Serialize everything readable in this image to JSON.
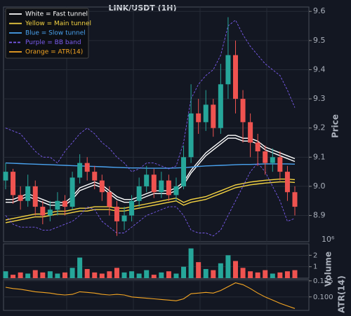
{
  "chart_data": [
    {
      "type": "candlestick",
      "title": "LINK/USDT (1H)",
      "ylabel": "Price",
      "ylim": [
        8.81,
        9.615
      ],
      "yticks": [
        8.9,
        {
          "value": 9,
          "label": "9.0"
        },
        9.1,
        9.2,
        9.3,
        9.4,
        9.5,
        9.6
      ],
      "grid": true,
      "legend": "upper left",
      "up_color": "#26a69a",
      "down_color": "#ef5350",
      "open": [
        9.02,
        9.05,
        8.97,
        8.95,
        9.0,
        8.93,
        8.9,
        8.92,
        8.95,
        8.93,
        9.03,
        9.08,
        9.05,
        9.02,
        8.98,
        8.93,
        8.88,
        8.9,
        8.95,
        9.0,
        9.04,
        8.98,
        9.02,
        8.97,
        9.0,
        9.1,
        9.25,
        9.22,
        9.28,
        9.2,
        9.35,
        9.45,
        9.3,
        9.22,
        9.15,
        9.12,
        9.08,
        9.1,
        9.05,
        8.98
      ],
      "high": [
        9.08,
        9.06,
        9.0,
        9.04,
        9.02,
        8.95,
        8.95,
        8.98,
        8.97,
        9.05,
        9.11,
        9.1,
        9.07,
        9.04,
        9.0,
        8.95,
        8.93,
        8.97,
        9.03,
        9.07,
        9.06,
        9.05,
        9.04,
        9.03,
        9.14,
        9.35,
        9.3,
        9.33,
        9.3,
        9.42,
        9.58,
        9.5,
        9.33,
        9.25,
        9.18,
        9.14,
        9.13,
        9.12,
        9.07,
        9.0
      ],
      "low": [
        8.99,
        8.94,
        8.92,
        8.93,
        8.9,
        8.87,
        8.88,
        8.9,
        8.9,
        8.92,
        9.01,
        9.02,
        8.99,
        8.95,
        8.9,
        8.83,
        8.85,
        8.88,
        8.93,
        8.98,
        8.96,
        8.96,
        8.95,
        8.95,
        8.99,
        9.08,
        9.18,
        9.19,
        9.17,
        9.18,
        9.3,
        9.25,
        9.15,
        9.1,
        9.07,
        9.04,
        9.05,
        9.02,
        8.95,
        8.9
      ],
      "close": [
        9.05,
        8.97,
        8.95,
        9.0,
        8.93,
        8.9,
        8.92,
        8.95,
        8.93,
        9.03,
        9.08,
        9.05,
        9.02,
        8.98,
        8.93,
        8.88,
        8.9,
        8.95,
        9.0,
        9.04,
        8.98,
        9.02,
        8.97,
        9.0,
        9.1,
        9.25,
        9.22,
        9.28,
        9.2,
        9.35,
        9.45,
        9.3,
        9.22,
        9.15,
        9.12,
        9.08,
        9.1,
        9.05,
        8.98,
        8.93
      ],
      "series": [
        {
          "name": "White = Fast tunnel",
          "color": "#ffffff",
          "double": true,
          "values": [
            8.95,
            8.95,
            8.96,
            8.97,
            8.96,
            8.95,
            8.94,
            8.94,
            8.94,
            8.96,
            8.99,
            9.0,
            9.01,
            9.0,
            8.98,
            8.96,
            8.95,
            8.95,
            8.96,
            8.97,
            8.98,
            8.98,
            8.98,
            8.99,
            9.01,
            9.05,
            9.08,
            9.11,
            9.13,
            9.15,
            9.17,
            9.17,
            9.16,
            9.16,
            9.15,
            9.13,
            9.12,
            9.11,
            9.1,
            9.09
          ]
        },
        {
          "name": "Yellow = Main tunnel",
          "color": "#f5d442",
          "double": true,
          "values": [
            8.88,
            8.885,
            8.89,
            8.895,
            8.9,
            8.9,
            8.905,
            8.91,
            8.91,
            8.915,
            8.92,
            8.92,
            8.925,
            8.925,
            8.925,
            8.92,
            8.92,
            8.925,
            8.93,
            8.935,
            8.94,
            8.945,
            8.95,
            8.955,
            8.94,
            8.95,
            8.955,
            8.96,
            8.97,
            8.98,
            8.99,
            9.0,
            9.005,
            9.01,
            9.013,
            9.016,
            9.018,
            9.02,
            9.02,
            9.018
          ]
        },
        {
          "name": "Blue = Slow tunnel",
          "color": "#4aa3f0",
          "values": [
            9.08,
            9.079,
            9.078,
            9.077,
            9.076,
            9.075,
            9.074,
            9.073,
            9.072,
            9.071,
            9.07,
            9.069,
            9.068,
            9.067,
            9.066,
            9.065,
            9.064,
            9.063,
            9.063,
            9.062,
            9.062,
            9.062,
            9.062,
            9.063,
            9.064,
            9.066,
            9.068,
            9.07,
            9.071,
            9.072,
            9.073,
            9.074,
            9.075,
            9.075,
            9.076,
            9.077,
            9.077,
            9.077,
            9.077,
            9.076
          ]
        },
        {
          "name": "Purple = BB band",
          "color": "#7b5cf0",
          "dashed": true,
          "values": [
            9.2,
            9.19,
            9.18,
            9.15,
            9.12,
            9.1,
            9.1,
            9.08,
            9.12,
            9.15,
            9.18,
            9.2,
            9.18,
            9.15,
            9.13,
            9.1,
            9.08,
            9.05,
            9.06,
            9.08,
            9.08,
            9.07,
            9.06,
            9.07,
            9.15,
            9.3,
            9.35,
            9.38,
            9.4,
            9.45,
            9.55,
            9.57,
            9.52,
            9.48,
            9.45,
            9.42,
            9.4,
            9.38,
            9.33,
            9.27
          ],
          "lower": [
            8.9,
            8.87,
            8.86,
            8.86,
            8.86,
            8.85,
            8.85,
            8.86,
            8.87,
            8.88,
            8.9,
            8.93,
            8.92,
            8.88,
            8.86,
            8.84,
            8.84,
            8.86,
            8.88,
            8.9,
            8.91,
            8.92,
            8.93,
            8.93,
            8.9,
            8.85,
            8.84,
            8.84,
            8.83,
            8.85,
            8.9,
            8.95,
            9.0,
            9.05,
            9.08,
            9.05,
            9.0,
            8.95,
            8.88,
            8.89
          ]
        }
      ]
    },
    {
      "type": "bar",
      "ylabel": "Volume",
      "offset_label": "10⁶",
      "ylim": [
        0,
        3
      ],
      "yticks": [
        1,
        2
      ],
      "grid": true,
      "values": [
        0.6,
        0.3,
        0.5,
        0.4,
        0.7,
        0.5,
        0.6,
        0.4,
        0.5,
        0.9,
        1.8,
        0.8,
        0.5,
        0.4,
        0.6,
        0.9,
        0.5,
        0.6,
        0.4,
        0.7,
        0.3,
        0.5,
        0.6,
        0.4,
        1.0,
        2.6,
        1.4,
        0.8,
        0.7,
        1.3,
        2.0,
        1.5,
        0.9,
        0.6,
        0.5,
        0.7,
        0.4,
        0.5,
        0.6,
        0.7
      ]
    },
    {
      "type": "line",
      "ylabel": "ATR(14)",
      "ylim": [
        0.079,
        0.127
      ],
      "yticks": [
        {
          "value": 0.1,
          "label": "0.100"
        },
        {
          "value": 0.125,
          "label": "0.125"
        }
      ],
      "grid": true,
      "series": [
        {
          "name": "Orange = ATR(14)",
          "color": "#f5a623",
          "values": [
            0.115,
            0.113,
            0.112,
            0.11,
            0.108,
            0.107,
            0.106,
            0.104,
            0.103,
            0.104,
            0.108,
            0.107,
            0.106,
            0.104,
            0.103,
            0.104,
            0.103,
            0.1,
            0.099,
            0.098,
            0.097,
            0.096,
            0.095,
            0.094,
            0.097,
            0.105,
            0.106,
            0.107,
            0.106,
            0.11,
            0.116,
            0.122,
            0.119,
            0.113,
            0.106,
            0.1,
            0.095,
            0.09,
            0.086,
            0.082
          ]
        }
      ]
    }
  ]
}
